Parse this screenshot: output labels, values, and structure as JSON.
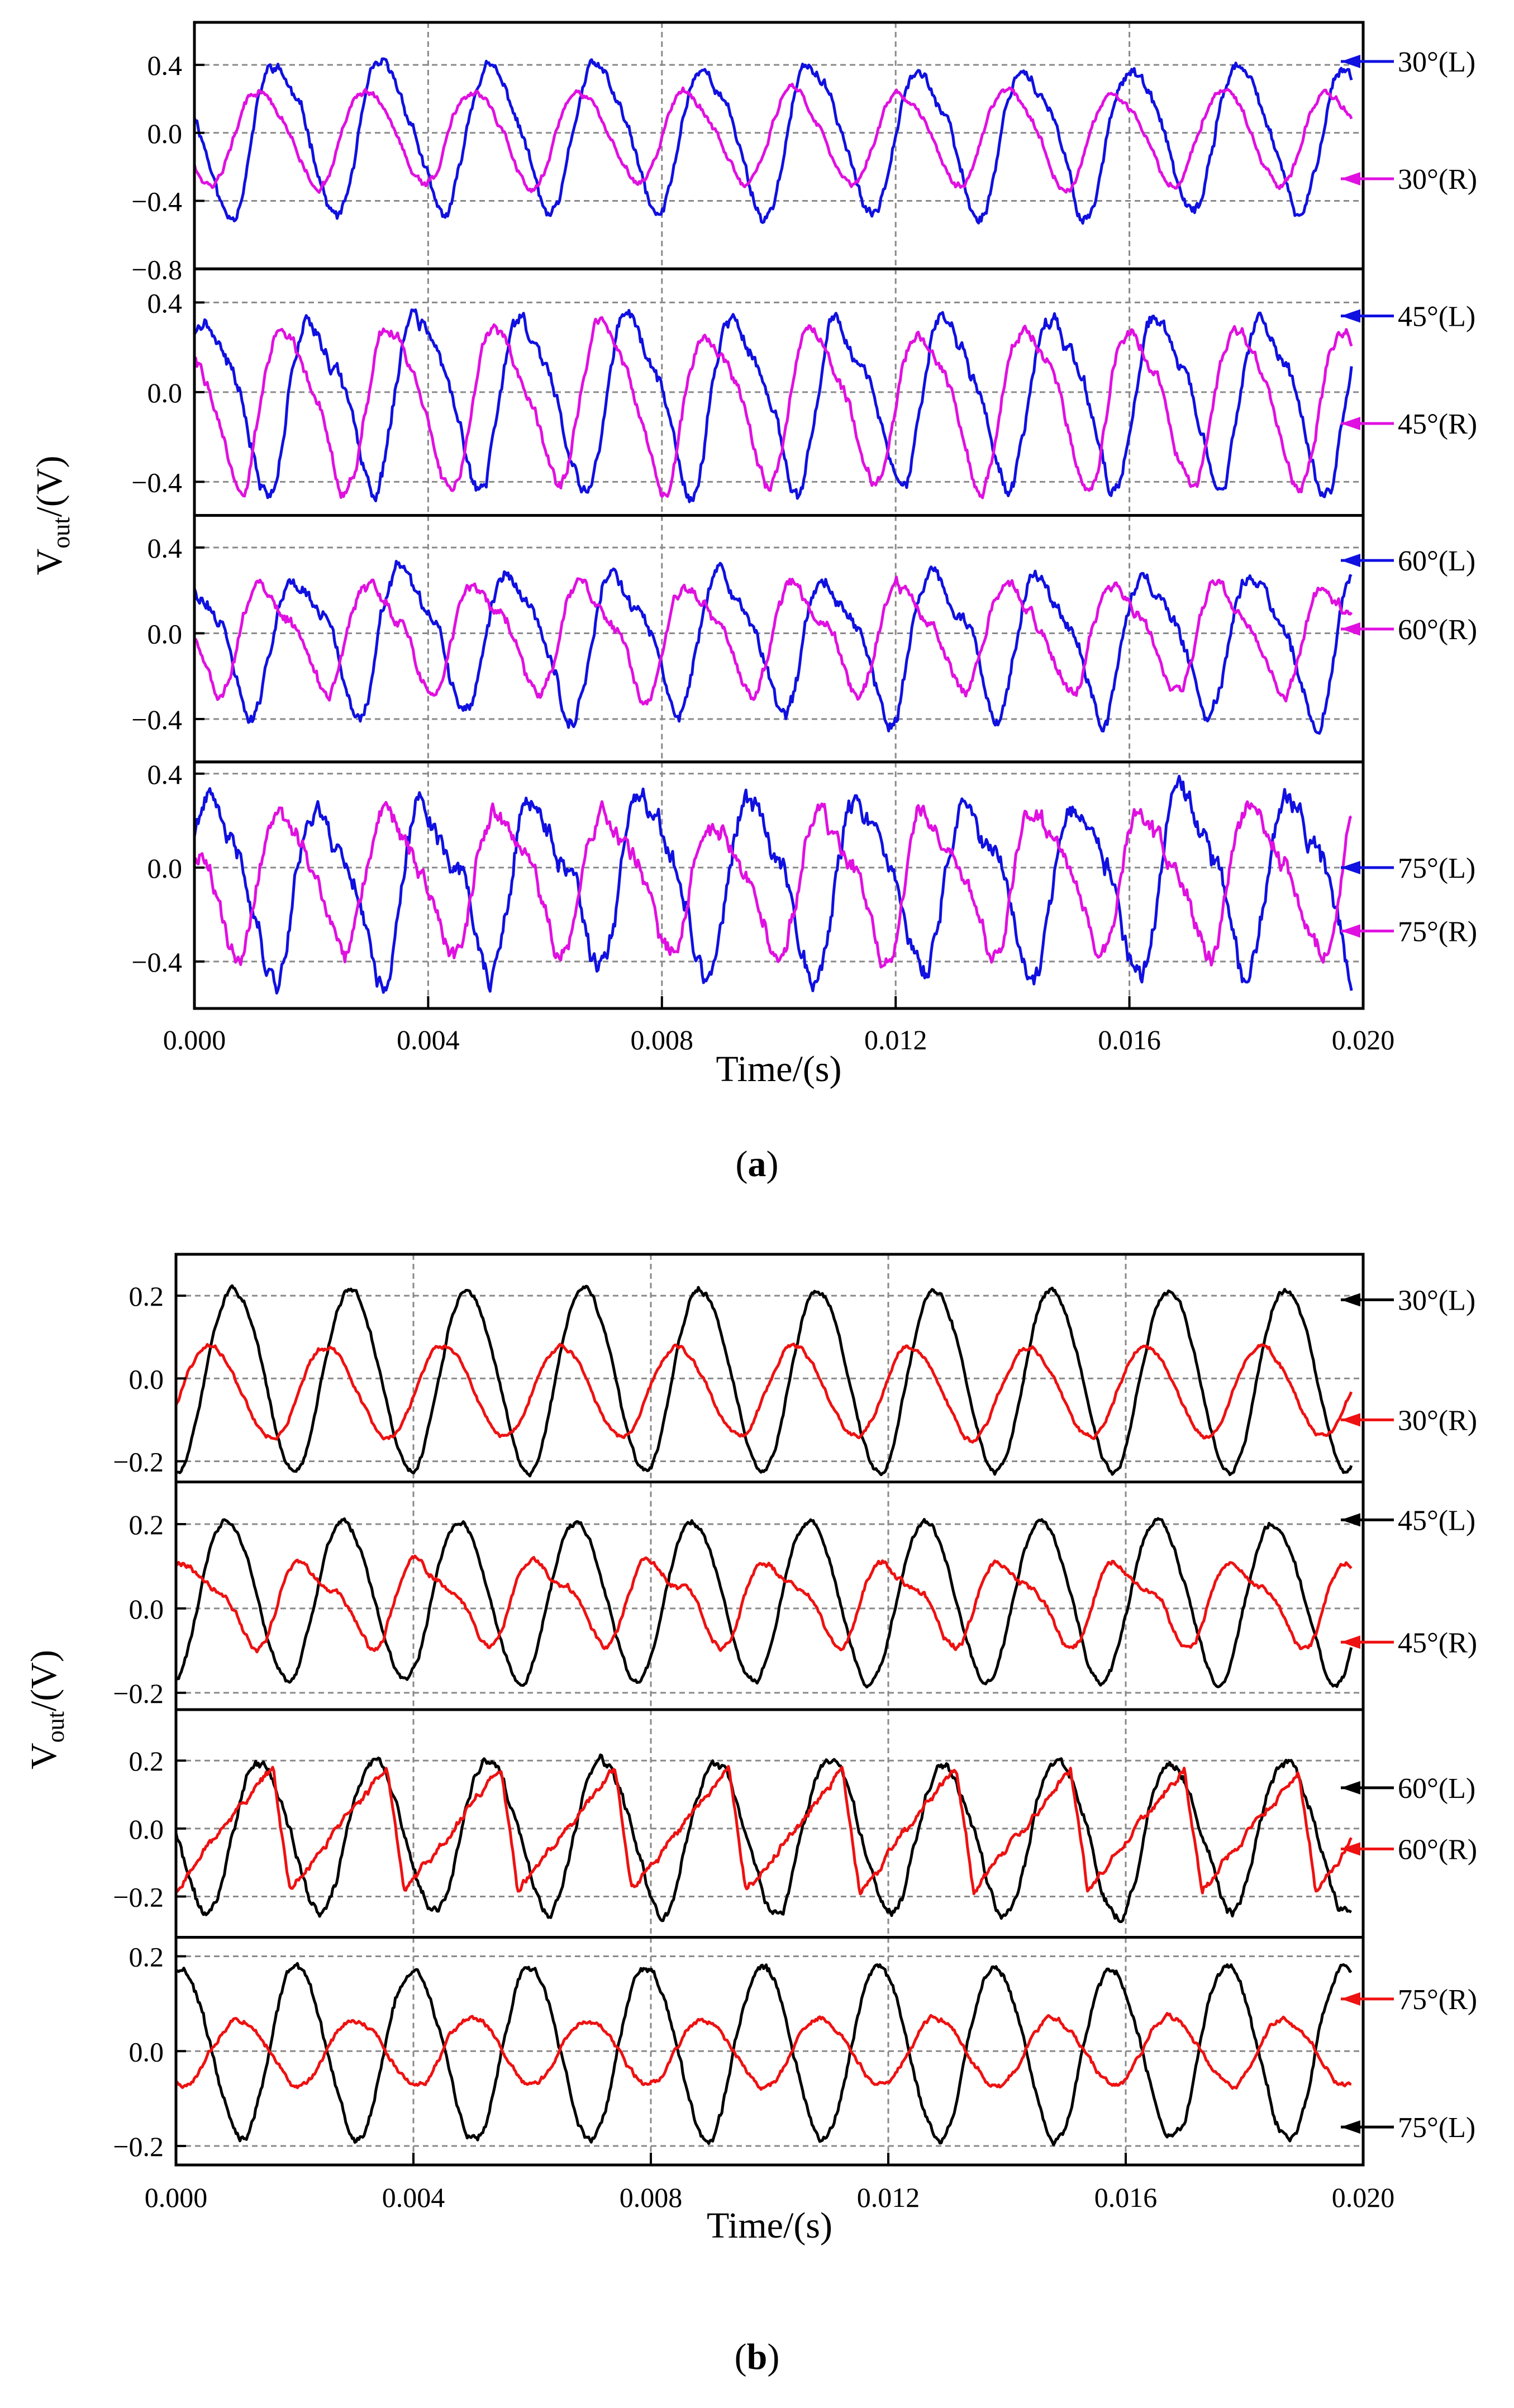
{
  "chart_data": [
    {
      "type": "line",
      "figure_label": "a",
      "xlabel": "Time/(s)",
      "ylabel_main": "V",
      "ylabel_sub": "out",
      "ylabel_unit": "/(V)",
      "xlim": [
        0,
        0.02
      ],
      "xticks": [
        "0.000",
        "0.004",
        "0.008",
        "0.012",
        "0.016",
        "0.020"
      ],
      "series_colors": {
        "L": "#1010e0",
        "R": "#e010e0"
      },
      "panels": [
        {
          "ylim": [
            -0.8,
            0.65
          ],
          "yticks": [
            0.4,
            0.0,
            -0.4,
            -0.8
          ],
          "ytick_labels": [
            "0.4",
            "0.0",
            "−0.4",
            "−0.8"
          ],
          "series": [
            {
              "name": "30°(L)",
              "side": "L",
              "period": 0.00183,
              "phase": 0.45,
              "amplitude": 0.42,
              "offset": -0.02,
              "harmonic": 0.18,
              "noise": 0.05,
              "seed": 11
            },
            {
              "name": "30°(R)",
              "side": "R",
              "period": 0.00183,
              "phase": 0.62,
              "amplitude": 0.27,
              "offset": -0.02,
              "harmonic": 0.12,
              "noise": 0.03,
              "seed": 12
            }
          ],
          "labels": [
            {
              "text": "30°(L)",
              "series": 0,
              "y": 0.42
            },
            {
              "text": "30°(R)",
              "series": 1,
              "y": -0.27
            }
          ]
        },
        {
          "ylim": [
            -0.55,
            0.55
          ],
          "yticks": [
            0.4,
            0.0,
            -0.4
          ],
          "ytick_labels": [
            "0.4",
            "0.0",
            "−0.4"
          ],
          "series": [
            {
              "name": "45°(L)",
              "side": "L",
              "period": 0.00181,
              "phase": 0.1,
              "amplitude": 0.36,
              "offset": -0.02,
              "harmonic": 0.25,
              "noise": 0.05,
              "seed": 21
            },
            {
              "name": "45°(R)",
              "side": "R",
              "period": 0.00181,
              "phase": 0.35,
              "amplitude": 0.33,
              "offset": -0.04,
              "harmonic": 0.22,
              "noise": 0.04,
              "seed": 22
            }
          ],
          "labels": [
            {
              "text": "45°(L)",
              "series": 0,
              "y": 0.34
            },
            {
              "text": "45°(R)",
              "series": 1,
              "y": -0.14
            }
          ]
        },
        {
          "ylim": [
            -0.6,
            0.55
          ],
          "yticks": [
            0.4,
            0.0,
            -0.4
          ],
          "ytick_labels": [
            "0.4",
            "0.0",
            "−0.4"
          ],
          "series": [
            {
              "name": "60°(L)",
              "side": "L",
              "period": 0.00182,
              "phase": 0.25,
              "amplitude": 0.3,
              "offset": -0.02,
              "harmonic": 0.3,
              "noise": 0.05,
              "seed": 31
            },
            {
              "name": "60°(R)",
              "side": "R",
              "period": 0.00182,
              "phase": 0.55,
              "amplitude": 0.23,
              "offset": -0.01,
              "harmonic": 0.28,
              "noise": 0.04,
              "seed": 32
            }
          ],
          "labels": [
            {
              "text": "60°(L)",
              "series": 0,
              "y": 0.34
            },
            {
              "text": "60°(R)",
              "series": 1,
              "y": 0.02
            }
          ]
        },
        {
          "ylim": [
            -0.6,
            0.45
          ],
          "yticks": [
            0.4,
            0.0,
            -0.4
          ],
          "ytick_labels": [
            "0.4",
            "0.0",
            "−0.4"
          ],
          "series": [
            {
              "name": "75°(L)",
              "side": "L",
              "period": 0.00185,
              "phase": 0.05,
              "amplitude": 0.33,
              "offset": -0.06,
              "harmonic": 0.3,
              "noise": 0.07,
              "seed": 41
            },
            {
              "name": "75°(R)",
              "side": "R",
              "period": 0.00185,
              "phase": 0.4,
              "amplitude": 0.27,
              "offset": -0.05,
              "harmonic": 0.3,
              "noise": 0.06,
              "seed": 42
            }
          ],
          "labels": [
            {
              "text": "75°(L)",
              "series": 0,
              "y": 0.0
            },
            {
              "text": "75°(R)",
              "series": 1,
              "y": -0.27
            }
          ]
        }
      ]
    },
    {
      "type": "line",
      "figure_label": "b",
      "xlabel": "Time/(s)",
      "ylabel_main": "V",
      "ylabel_sub": "out",
      "ylabel_unit": "/(V)",
      "xlim": [
        0,
        0.02
      ],
      "xticks": [
        "0.000",
        "0.004",
        "0.008",
        "0.012",
        "0.016",
        "0.020"
      ],
      "series_colors": {
        "L": "#000000",
        "R": "#ee1111"
      },
      "panels": [
        {
          "ylim": [
            -0.25,
            0.3
          ],
          "yticks": [
            0.2,
            0.0,
            -0.2
          ],
          "ytick_labels": [
            "0.2",
            "0.0",
            "−0.2"
          ],
          "series": [
            {
              "name": "30°(L)",
              "side": "L",
              "period": 0.00197,
              "phase": 0.75,
              "amplitude": 0.22,
              "offset": 0.0,
              "harmonic": 0.05,
              "noise": 0.01,
              "seed": 51
            },
            {
              "name": "30°(R)",
              "side": "R",
              "period": 0.00197,
              "phase": 0.95,
              "amplitude": 0.11,
              "offset": -0.03,
              "harmonic": 0.05,
              "noise": 0.008,
              "seed": 52
            }
          ],
          "labels": [
            {
              "text": "30°(L)",
              "series": 0,
              "y": 0.19
            },
            {
              "text": "30°(R)",
              "series": 1,
              "y": -0.1
            }
          ]
        },
        {
          "ylim": [
            -0.24,
            0.3
          ],
          "yticks": [
            0.2,
            0.0,
            -0.2
          ],
          "ytick_labels": [
            "0.2",
            "0.0",
            "−0.2"
          ],
          "series": [
            {
              "name": "45°(L)",
              "side": "L",
              "period": 0.00196,
              "phase": 0.8,
              "amplitude": 0.19,
              "offset": 0.02,
              "harmonic": 0.05,
              "noise": 0.01,
              "seed": 61
            },
            {
              "name": "45°(R)",
              "side": "R",
              "period": 0.00196,
              "phase": 0.1,
              "amplitude": 0.09,
              "offset": 0.02,
              "harmonic": 0.35,
              "noise": 0.01,
              "seed": 62
            }
          ],
          "labels": [
            {
              "text": "45°(L)",
              "series": 0,
              "y": 0.21
            },
            {
              "text": "45°(R)",
              "series": 1,
              "y": -0.08
            }
          ]
        },
        {
          "ylim": [
            -0.32,
            0.35
          ],
          "yticks": [
            0.2,
            0.0,
            -0.2
          ],
          "ytick_labels": [
            "0.2",
            "0.0",
            "−0.2"
          ],
          "series": [
            {
              "name": "60°(L)",
              "side": "L",
              "period": 0.00192,
              "phase": 0.5,
              "amplitude": 0.22,
              "offset": -0.02,
              "harmonic": 0.08,
              "noise": 0.02,
              "seed": 71
            },
            {
              "name": "60°(R)",
              "side": "R",
              "period": 0.00192,
              "phase": 0.0,
              "amplitude": 0.18,
              "offset": 0.0,
              "sawtooth": true,
              "noise": 0.015,
              "seed": 72
            }
          ],
          "labels": [
            {
              "text": "60°(L)",
              "series": 0,
              "y": 0.12
            },
            {
              "text": "60°(R)",
              "series": 1,
              "y": -0.06
            }
          ]
        },
        {
          "ylim": [
            -0.24,
            0.24
          ],
          "yticks": [
            0.2,
            0.0,
            -0.2
          ],
          "ytick_labels": [
            "0.2",
            "0.0",
            "−0.2"
          ],
          "series": [
            {
              "name": "75°(L)",
              "side": "L",
              "period": 0.00196,
              "phase": 0.2,
              "amplitude": 0.18,
              "offset": 0.0,
              "harmonic": 0.05,
              "noise": 0.012,
              "seed": 81
            },
            {
              "name": "75°(R)",
              "side": "R",
              "period": 0.00196,
              "phase": 0.7,
              "amplitude": 0.07,
              "offset": 0.0,
              "harmonic": 0.05,
              "noise": 0.008,
              "seed": 82
            }
          ],
          "labels": [
            {
              "text": "75°(R)",
              "series": 1,
              "y": 0.11
            },
            {
              "text": "75°(L)",
              "series": 0,
              "y": -0.16
            }
          ]
        }
      ]
    }
  ]
}
